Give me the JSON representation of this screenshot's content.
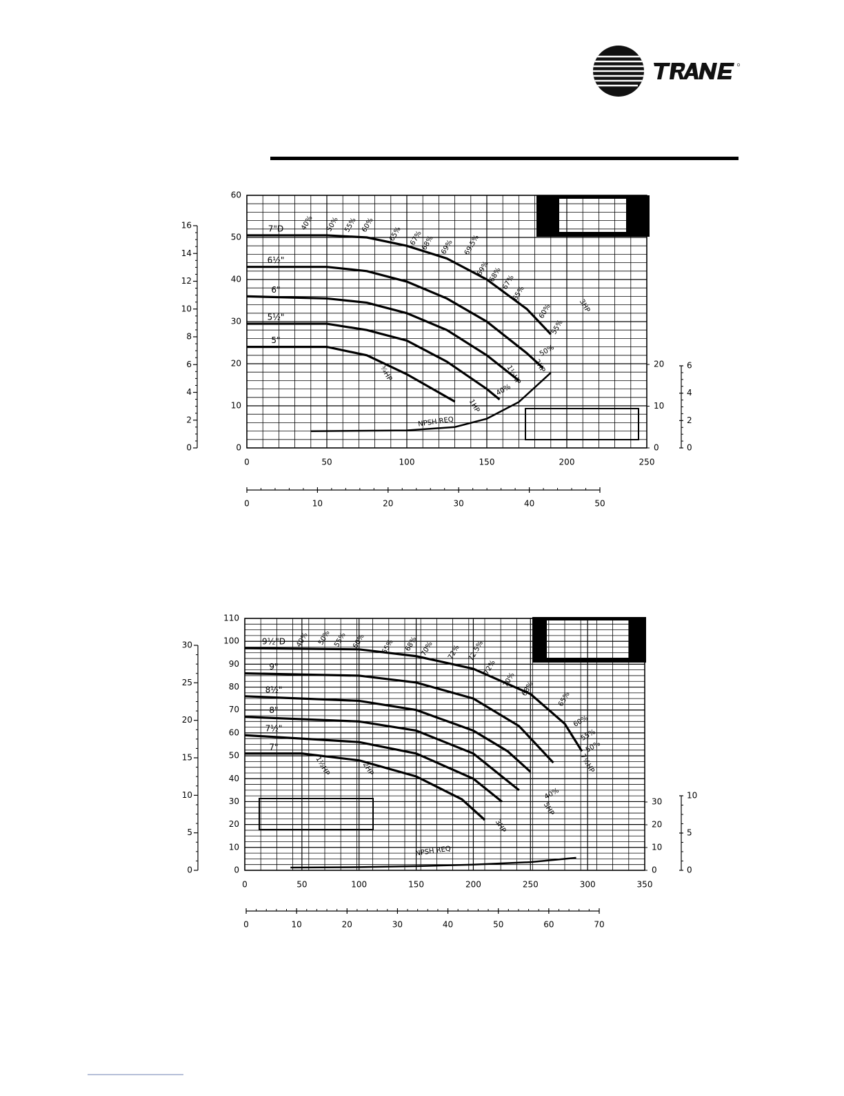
{
  "chart_data": [
    {
      "type": "line",
      "xlim": [
        0,
        250
      ],
      "xticks": [
        0,
        50,
        100,
        150,
        200,
        250
      ],
      "ylim": [
        0,
        60
      ],
      "yticks": [
        0,
        10,
        20,
        30,
        40,
        50,
        60
      ],
      "y2lim": [
        0,
        20
      ],
      "y2ticks": [
        0,
        10,
        20
      ],
      "y3lim": [
        0,
        16
      ],
      "y3ticks": [
        0,
        2,
        4,
        6,
        8,
        10,
        12,
        14,
        16
      ],
      "y4lim": [
        0,
        6
      ],
      "y4ticks": [
        0,
        2,
        4,
        6
      ],
      "x2lim": [
        0,
        50
      ],
      "x2ticks": [
        0,
        10,
        20,
        30,
        40,
        50
      ],
      "grid": true,
      "series": [
        {
          "name": "7\"D",
          "color": "#000",
          "x": [
            0,
            50,
            75,
            100,
            125,
            150,
            175,
            190
          ],
          "values": [
            50.5,
            50.5,
            50,
            48,
            45,
            40,
            33,
            27
          ]
        },
        {
          "name": "6½\"",
          "color": "#000",
          "x": [
            0,
            50,
            75,
            100,
            125,
            150,
            175,
            185
          ],
          "values": [
            43,
            43,
            42,
            39.5,
            35.5,
            30,
            22.5,
            19
          ]
        },
        {
          "name": "6\"",
          "color": "#000",
          "x": [
            0,
            50,
            75,
            100,
            125,
            150,
            170
          ],
          "values": [
            36,
            35.5,
            34.5,
            32,
            28,
            22,
            16
          ]
        },
        {
          "name": "5½\"",
          "color": "#000",
          "x": [
            0,
            50,
            75,
            100,
            125,
            150,
            158
          ],
          "values": [
            29.5,
            29.5,
            28,
            25.5,
            20.5,
            14,
            11.5
          ]
        },
        {
          "name": "5\"",
          "color": "#000",
          "x": [
            0,
            50,
            75,
            100,
            130
          ],
          "values": [
            24,
            24,
            22,
            17.5,
            11
          ]
        },
        {
          "name": "NPSH REQ",
          "color": "#000",
          "axis": "y2",
          "x": [
            40,
            100,
            130,
            150,
            170,
            190
          ],
          "values": [
            4,
            4.2,
            5,
            7,
            11,
            18
          ]
        }
      ],
      "annotations": [
        "40%",
        "50%",
        "55%",
        "60%",
        "65%",
        "67%",
        "68%",
        "69%",
        "69.5%",
        "69%",
        "68%",
        "67%",
        "65%",
        "60%",
        "55%",
        "50%",
        "40%",
        "3HP",
        "2HP",
        "1½HP",
        "1HP",
        "¾HP"
      ]
    },
    {
      "type": "line",
      "xlim": [
        0,
        350
      ],
      "xticks": [
        0,
        50,
        100,
        150,
        200,
        250,
        300,
        350
      ],
      "ylim": [
        0,
        110
      ],
      "yticks": [
        0,
        10,
        20,
        30,
        40,
        50,
        60,
        70,
        80,
        90,
        100,
        110
      ],
      "y2lim": [
        0,
        30
      ],
      "y2ticks": [
        0,
        10,
        20,
        30
      ],
      "y3lim": [
        0,
        30
      ],
      "y3ticks": [
        0,
        5,
        10,
        15,
        20,
        25,
        30
      ],
      "y4lim": [
        0,
        10
      ],
      "y4ticks": [
        0,
        5,
        10
      ],
      "x2lim": [
        0,
        70
      ],
      "x2ticks": [
        0,
        10,
        20,
        30,
        40,
        50,
        60,
        70
      ],
      "grid": true,
      "series": [
        {
          "name": "9½\"D",
          "color": "#000",
          "x": [
            0,
            100,
            150,
            200,
            250,
            280,
            295
          ],
          "values": [
            97,
            96.5,
            93.5,
            88,
            77,
            64,
            52
          ]
        },
        {
          "name": "9\"",
          "color": "#000",
          "x": [
            0,
            100,
            150,
            200,
            240,
            270
          ],
          "values": [
            86,
            85,
            82,
            75,
            63,
            47
          ]
        },
        {
          "name": "8½\"",
          "color": "#000",
          "x": [
            0,
            100,
            150,
            200,
            230,
            250
          ],
          "values": [
            76,
            74,
            70,
            61,
            52,
            43
          ]
        },
        {
          "name": "8\"",
          "color": "#000",
          "x": [
            0,
            100,
            150,
            200,
            220,
            240
          ],
          "values": [
            67,
            65,
            61,
            51,
            43,
            35
          ]
        },
        {
          "name": "7½\"",
          "color": "#000",
          "x": [
            0,
            100,
            150,
            200,
            225
          ],
          "values": [
            59,
            56,
            51,
            40,
            30
          ]
        },
        {
          "name": "7\"",
          "color": "#000",
          "x": [
            0,
            50,
            100,
            150,
            190,
            210
          ],
          "values": [
            51,
            51,
            48,
            41,
            31,
            22
          ]
        },
        {
          "name": "NPSH REQ",
          "color": "#000",
          "axis": "y2",
          "x": [
            40,
            100,
            150,
            200,
            250,
            290
          ],
          "values": [
            1.2,
            1.4,
            1.8,
            2.5,
            3.6,
            5.5
          ]
        }
      ],
      "annotations": [
        "40%",
        "50%",
        "55%",
        "60%",
        "65%",
        "68%",
        "70%",
        "72%",
        "72.5%",
        "72%",
        "70%",
        "68%",
        "65%",
        "60%",
        "55%",
        "50%",
        "40%",
        "7½HP",
        "5HP",
        "3HP",
        "2HP",
        "1½HP"
      ]
    }
  ]
}
